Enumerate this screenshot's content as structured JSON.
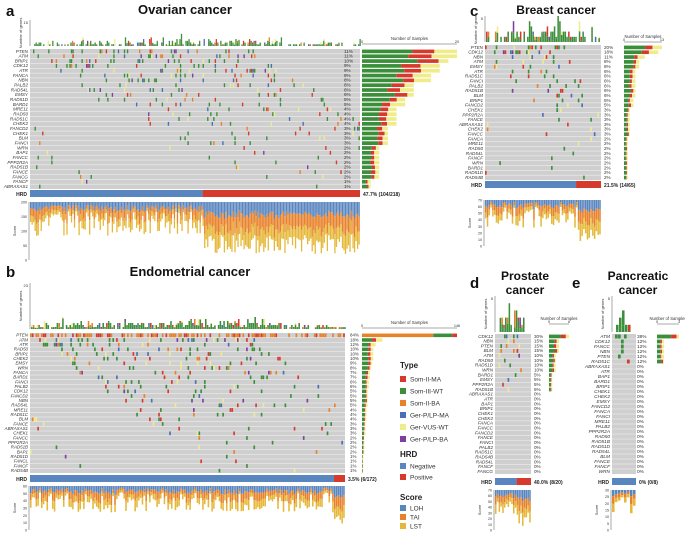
{
  "figure": {
    "colors": {
      "som_ii_ma": "#d63a2c",
      "som_iii_wt": "#3b8e3a",
      "som_ii_ba": "#e8822a",
      "ger_plp_ma": "#4a6fb5",
      "ger_vus_wt": "#f0ec8a",
      "ger_plp_ba": "#7b3fa0",
      "negative": "#5a86c0",
      "positive": "#d63a2c",
      "loh": "#5a86c0",
      "tai": "#e8822a",
      "lst": "#e6b83a",
      "grid": "#cfcfcf",
      "frequency_bar": "#d63a2c"
    },
    "legend": {
      "type_title": "Type",
      "type_items": [
        {
          "label": "Som-II-MA",
          "color": "#d63a2c"
        },
        {
          "label": "Som-III-WT",
          "color": "#3b8e3a"
        },
        {
          "label": "Som-II-BA",
          "color": "#e8822a"
        },
        {
          "label": "Ger-P/LP-MA",
          "color": "#4a6fb5"
        },
        {
          "label": "Ger-VUS-WT",
          "color": "#f0ec8a"
        },
        {
          "label": "Ger-P/LP-BA",
          "color": "#7b3fa0"
        }
      ],
      "hrd_title": "HRD",
      "hrd_items": [
        {
          "label": "Negative",
          "color": "#5a86c0"
        },
        {
          "label": "Positive",
          "color": "#d63a2c"
        }
      ],
      "score_title": "Score",
      "score_items": [
        {
          "label": "LOH",
          "color": "#5a86c0"
        },
        {
          "label": "TAI",
          "color": "#e8822a"
        },
        {
          "label": "LST",
          "color": "#e6b83a"
        }
      ]
    }
  },
  "chart_data": [
    {
      "panel": "a",
      "type": "oncoprint",
      "title": "Ovarian cancer",
      "n_samples": 218,
      "top_ylabel": "Number of genes",
      "top_ymax": 15,
      "right_xlabel": "Number of Samples",
      "right_xlim": [
        0,
        20
      ],
      "right_ticks": [
        "0",
        "20"
      ],
      "genes": [
        "PTEN",
        "ATM",
        "BRIP1",
        "CDK12",
        "ATR",
        "FANCA",
        "NBN",
        "PALB2",
        "RAD54L",
        "EMSY",
        "RAD51D",
        "BARD1",
        "MRE11",
        "RAD50",
        "RAD51C",
        "CHEK2",
        "FANCD2",
        "CHEK1",
        "BLM",
        "FANCI",
        "WRN",
        "BAP1",
        "FANCC",
        "PPP2R2A",
        "RAD51B",
        "FANCE",
        "FANCG",
        "FANCF",
        "ABRAXAS1"
      ],
      "percents": [
        "11%",
        "11%",
        "10%",
        "9%",
        "9%",
        "8%",
        "8%",
        "6%",
        "6%",
        "6%",
        "5%",
        "5%",
        "4%",
        "4%",
        "4%",
        "4%",
        "3%",
        "3%",
        "3%",
        "3%",
        "2%",
        "2%",
        "2%",
        "2%",
        "2%",
        "2%",
        "2%",
        "1%",
        "1%"
      ],
      "hrd_label": "HRD",
      "hrd_positive_text": "47.7% (104/218)",
      "hrd_positive_fraction": 0.477,
      "score_label": "Score",
      "score_ticks": [
        "200",
        "150",
        "100",
        "50",
        "0"
      ]
    },
    {
      "panel": "b",
      "type": "oncoprint",
      "title": "Endometrial cancer",
      "n_samples": 172,
      "top_ylabel": "Number of genes",
      "top_ymax": 23,
      "right_xlabel": "Number of Samples",
      "right_xlim": [
        0,
        146
      ],
      "right_ticks": [
        "0",
        "146"
      ],
      "genes": [
        "PTEN",
        "ATM",
        "ATR",
        "RAD50",
        "BRIP1",
        "CHEK2",
        "EMSY",
        "WRN",
        "FANCA",
        "BARD1",
        "FANCI",
        "PALB2",
        "CDK12",
        "FANCD2",
        "NBN",
        "RAD54L",
        "MRE11",
        "RAD51C",
        "BLM",
        "FANCE",
        "ABRAXAS1",
        "CHEK1",
        "FANCC",
        "PPP2R2A",
        "RAD51B",
        "BAP1",
        "RAD51D",
        "FANCL",
        "FANCF",
        "RAD54B"
      ],
      "percents": [
        "84%",
        "18%",
        "12%",
        "10%",
        "10%",
        "10%",
        "9%",
        "8%",
        "7%",
        "7%",
        "6%",
        "6%",
        "5%",
        "5%",
        "5%",
        "5%",
        "4%",
        "4%",
        "4%",
        "3%",
        "3%",
        "3%",
        "2%",
        "2%",
        "2%",
        "2%",
        "1%",
        "1%",
        "1%",
        "1%"
      ],
      "hrd_label": "HRD",
      "hrd_positive_text": "3.5% (6/172)",
      "hrd_positive_fraction": 0.035,
      "score_label": "Score",
      "score_ticks": [
        "60",
        "50",
        "40",
        "30",
        "20",
        "10",
        "0"
      ]
    },
    {
      "panel": "c",
      "type": "oncoprint",
      "title": "Breast cancer",
      "n_samples": 65,
      "top_ylabel": "Number of genes",
      "top_ymax": 5,
      "right_xlabel": "Number of Samples",
      "right_xlim": [
        0,
        13
      ],
      "right_ticks": [
        "0",
        "13"
      ],
      "genes": [
        "PTEN",
        "CDK12",
        "NBN",
        "ATM",
        "EMSY",
        "ATR",
        "RAD51C",
        "FANCI",
        "PALB2",
        "RAD51B",
        "BLM",
        "BRIP1",
        "FANCD2",
        "CHEK1",
        "PPP2R2A",
        "FANCE",
        "ABRAXAS1",
        "CHEK2",
        "FANCC",
        "FANCA",
        "MRE11",
        "RAD50",
        "RAD54L",
        "FANCF",
        "WRN",
        "BARD1",
        "RAD51D",
        "RAD54B"
      ],
      "percents": [
        "20%",
        "18%",
        "11%",
        "8%",
        "8%",
        "6%",
        "6%",
        "6%",
        "6%",
        "6%",
        "6%",
        "5%",
        "5%",
        "3%",
        "3%",
        "3%",
        "3%",
        "3%",
        "3%",
        "2%",
        "2%",
        "2%",
        "2%",
        "2%",
        "2%",
        "2%",
        "2%",
        "2%"
      ],
      "hrd_label": "HRD",
      "hrd_positive_text": "21.5% (14/65)",
      "hrd_positive_fraction": 0.215,
      "score_label": "Score",
      "score_ticks": [
        "70",
        "60",
        "50",
        "40",
        "30",
        "20",
        "10",
        "0"
      ]
    },
    {
      "panel": "d",
      "type": "oncoprint",
      "title": "Prostate cancer",
      "n_samples": 20,
      "top_ylabel": "Number of genes",
      "top_ymax": 5,
      "right_xlabel": "Number of Samples",
      "right_xlim": [
        0,
        6
      ],
      "right_ticks": [
        "0",
        "6"
      ],
      "genes": [
        "CDK12",
        "NBN",
        "PTEN",
        "BLM",
        "ATM",
        "RAD50",
        "RAD51D",
        "WRN",
        "BARD1",
        "EMSY",
        "PPP2R2A",
        "RAD51B",
        "ABRAXAS1",
        "ATR",
        "BAP1",
        "BRIP1",
        "CHEK1",
        "CHEK2",
        "FANCA",
        "FANCC",
        "FANCD2",
        "FANCE",
        "FANCI",
        "PALB2",
        "RAD51C",
        "RAD54B",
        "RAD54L",
        "FANCF",
        "FANCG"
      ],
      "percents": [
        "30%",
        "15%",
        "15%",
        "15%",
        "10%",
        "10%",
        "10%",
        "10%",
        "5%",
        "5%",
        "5%",
        "5%",
        "0%",
        "0%",
        "0%",
        "0%",
        "0%",
        "0%",
        "0%",
        "0%",
        "0%",
        "0%",
        "0%",
        "0%",
        "0%",
        "0%",
        "0%",
        "0%",
        "0%"
      ],
      "hrd_label": "HRD",
      "hrd_positive_text": "40.0% (8/20)",
      "hrd_positive_fraction": 0.4,
      "score_label": "Score",
      "score_ticks": [
        "70",
        "60",
        "50",
        "40",
        "30",
        "20",
        "10",
        "0"
      ]
    },
    {
      "panel": "e",
      "type": "oncoprint",
      "title": "Pancreatic cancer",
      "n_samples": 8,
      "top_ylabel": "Number of genes",
      "top_ymax": 5,
      "right_xlabel": "Number of Samples",
      "right_xlim": [
        0,
        3
      ],
      "right_ticks": [
        "0",
        "3"
      ],
      "genes": [
        "ATM",
        "CDK12",
        "FANCC",
        "NBN",
        "PTEN",
        "RAD51C",
        "ABRAXAS1",
        "ATR",
        "BAP1",
        "BARD1",
        "BRIP1",
        "CHEK1",
        "CHEK2",
        "EMSY",
        "FANCD2",
        "FANCA",
        "FANCI",
        "MRE11",
        "PALB2",
        "PPP2R2A",
        "RAD50",
        "RAD51B",
        "RAD51D",
        "RAD54L",
        "BLM",
        "FANCE",
        "FANCF",
        "WRN"
      ],
      "percents": [
        "38%",
        "12%",
        "12%",
        "12%",
        "12%",
        "12%",
        "0%",
        "0%",
        "0%",
        "0%",
        "0%",
        "0%",
        "0%",
        "0%",
        "0%",
        "0%",
        "0%",
        "0%",
        "0%",
        "0%",
        "0%",
        "0%",
        "0%",
        "0%",
        "0%",
        "0%",
        "0%",
        "0%"
      ],
      "hrd_label": "HRD",
      "hrd_positive_text": "0% (0/8)",
      "hrd_positive_fraction": 0.0,
      "score_label": "Score",
      "score_ticks": [
        "30",
        "25",
        "20",
        "15",
        "10",
        "5",
        "0"
      ]
    }
  ]
}
